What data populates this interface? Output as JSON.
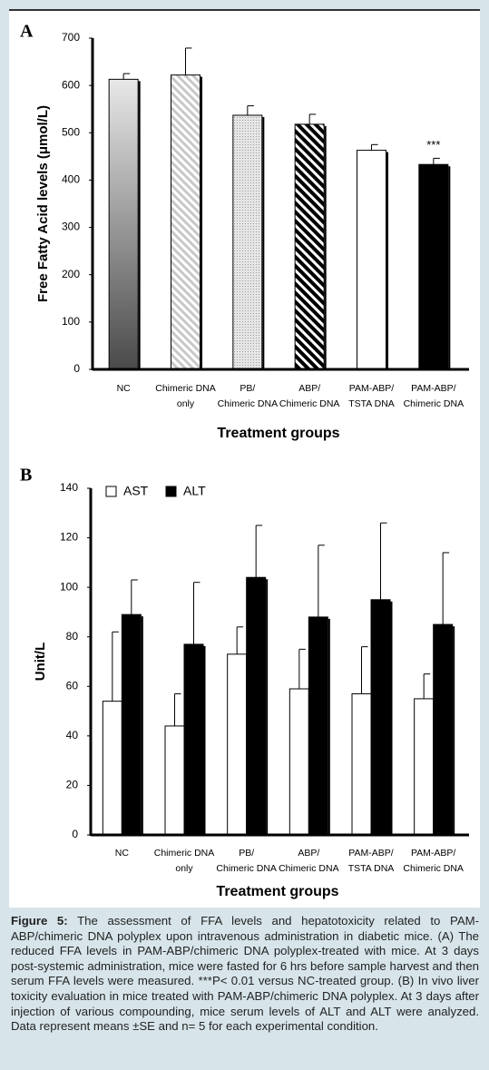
{
  "chart_data": [
    {
      "type": "bar",
      "panel": "A",
      "y_label": "Free Fatty Acid levels (μmol/L)",
      "x_label": "Treatment groups",
      "categories": [
        [
          "NC"
        ],
        [
          "Chimeric DNA",
          "only"
        ],
        [
          "PB/",
          "Chimeric DNA"
        ],
        [
          "ABP/",
          "Chimeric DNA"
        ],
        [
          "PAM-ABP/",
          "TSTA DNA"
        ],
        [
          "PAM-ABP/",
          "Chimeric DNA"
        ]
      ],
      "values": [
        613,
        622,
        537,
        518,
        463,
        433
      ],
      "errors": [
        12,
        57,
        20,
        21,
        12,
        13
      ],
      "bar_styles": [
        "gradient",
        "hatch-light",
        "dots",
        "hatch-dark",
        "white",
        "black"
      ],
      "annotation": "***",
      "ylim": [
        0,
        700
      ],
      "yticks": [
        0,
        100,
        200,
        300,
        400,
        500,
        600,
        700
      ]
    },
    {
      "type": "bar",
      "panel": "B",
      "y_label": "Unit/L",
      "x_label": "Treatment groups",
      "categories": [
        [
          "NC"
        ],
        [
          "Chimeric DNA",
          "only"
        ],
        [
          "PB/",
          "Chimeric DNA"
        ],
        [
          "ABP/",
          "Chimeric DNA"
        ],
        [
          "PAM-ABP/",
          "TSTA DNA"
        ],
        [
          "PAM-ABP/",
          "Chimeric DNA"
        ]
      ],
      "series": [
        {
          "name": "AST",
          "color": "#ffffff",
          "values": [
            54,
            44,
            73,
            59,
            57,
            55
          ],
          "errors": [
            28,
            13,
            11,
            16,
            19,
            10
          ]
        },
        {
          "name": "ALT",
          "color": "#000000",
          "values": [
            89,
            77,
            104,
            88,
            95,
            85
          ],
          "errors": [
            14,
            25,
            21,
            29,
            31,
            29
          ]
        }
      ],
      "ylim": [
        0,
        140
      ],
      "yticks": [
        0,
        20,
        40,
        60,
        80,
        100,
        120,
        140
      ]
    }
  ],
  "caption": {
    "label": "Figure 5:",
    "text": "The assessment of FFA levels and hepatotoxicity related to PAM-ABP/chimeric DNA polyplex upon intravenous administration in diabetic mice. (A) The reduced FFA levels in PAM-ABP/chimeric DNA polyplex-treated with mice. At 3 days post-systemic administration, mice were fasted for 6 hrs before sample harvest and then serum FFA levels were measured. ***P< 0.01 versus NC-treated group. (B) In vivo liver toxicity evaluation in mice treated with PAM-ABP/chimeric DNA polyplex. At 3 days after injection of various compounding, mice serum levels of ALT and ALT were analyzed. Data represent means ±SE and n= 5 for each experimental condition."
  }
}
